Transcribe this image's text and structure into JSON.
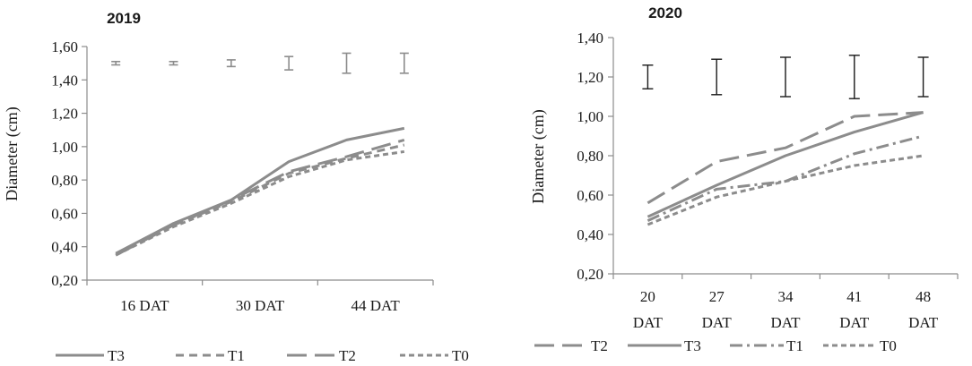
{
  "chart_data": [
    {
      "type": "line",
      "title": "2019",
      "ylabel": "Diameter (cm)",
      "xlabel": "",
      "ylim": [
        0.2,
        1.6
      ],
      "yticks": [
        "0,20",
        "0,40",
        "0,60",
        "0,80",
        "1,00",
        "1,20",
        "1,40",
        "1,60"
      ],
      "x_tick_labels": [
        "16 DAT",
        "30 DAT",
        "44 DAT"
      ],
      "n_points": 6,
      "grid": false,
      "legend_position": "bottom",
      "series": [
        {
          "name": "T3",
          "style": "solid",
          "values": [
            0.36,
            0.54,
            0.68,
            0.91,
            1.04,
            1.11
          ]
        },
        {
          "name": "T1",
          "style": "dash",
          "values": [
            0.35,
            0.53,
            0.67,
            0.84,
            0.93,
            1.01
          ]
        },
        {
          "name": "T2",
          "style": "longdash",
          "values": [
            0.35,
            0.53,
            0.68,
            0.85,
            0.94,
            1.04
          ]
        },
        {
          "name": "T0",
          "style": "shortdash",
          "values": [
            0.35,
            0.52,
            0.66,
            0.82,
            0.92,
            0.97
          ]
        }
      ],
      "error_bars": [
        {
          "low": 1.49,
          "high": 1.51
        },
        {
          "low": 1.49,
          "high": 1.51
        },
        {
          "low": 1.48,
          "high": 1.52
        },
        {
          "low": 1.46,
          "high": 1.54
        },
        {
          "low": 1.44,
          "high": 1.56
        },
        {
          "low": 1.44,
          "high": 1.56
        }
      ],
      "legend_order": [
        "T3",
        "T1",
        "T2",
        "T0"
      ]
    },
    {
      "type": "line",
      "title": "2020",
      "ylabel": "Diameter (cm)",
      "xlabel": "",
      "ylim": [
        0.2,
        1.4
      ],
      "yticks": [
        "0,20",
        "0,40",
        "0,60",
        "0,80",
        "1,00",
        "1,20",
        "1,40"
      ],
      "categories": [
        [
          "20",
          "DAT"
        ],
        [
          "27",
          "DAT"
        ],
        [
          "34",
          "DAT"
        ],
        [
          "41",
          "DAT"
        ],
        [
          "48",
          "DAT"
        ]
      ],
      "grid": false,
      "legend_position": "bottom",
      "series": [
        {
          "name": "T2",
          "style": "longdash",
          "values": [
            0.56,
            0.77,
            0.84,
            1.0,
            1.02
          ]
        },
        {
          "name": "T3",
          "style": "solid",
          "values": [
            0.49,
            0.65,
            0.8,
            0.92,
            1.02
          ]
        },
        {
          "name": "T1",
          "style": "dashdot",
          "values": [
            0.47,
            0.63,
            0.67,
            0.81,
            0.9
          ]
        },
        {
          "name": "T0",
          "style": "shortdash",
          "values": [
            0.45,
            0.59,
            0.67,
            0.75,
            0.8
          ]
        }
      ],
      "error_bars": [
        {
          "low": 1.14,
          "high": 1.26
        },
        {
          "low": 1.11,
          "high": 1.29
        },
        {
          "low": 1.1,
          "high": 1.3
        },
        {
          "low": 1.09,
          "high": 1.31
        },
        {
          "low": 1.1,
          "high": 1.3
        }
      ],
      "legend_order": [
        "T2",
        "T3",
        "T1",
        "T0"
      ]
    }
  ]
}
